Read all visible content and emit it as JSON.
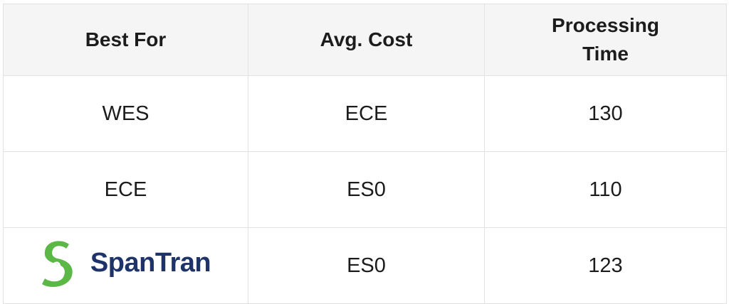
{
  "table": {
    "headers": [
      "Best For",
      "Avg. Cost",
      "Processing Time"
    ],
    "rows": [
      [
        "WES",
        "ECE",
        "130"
      ],
      [
        "ECE",
        "ES0",
        "110"
      ],
      [
        "SpanTran",
        "ES0",
        "123"
      ]
    ]
  },
  "logo": {
    "text": "SpanTran",
    "icon_color": "#5bb846",
    "text_color": "#1e3468"
  }
}
